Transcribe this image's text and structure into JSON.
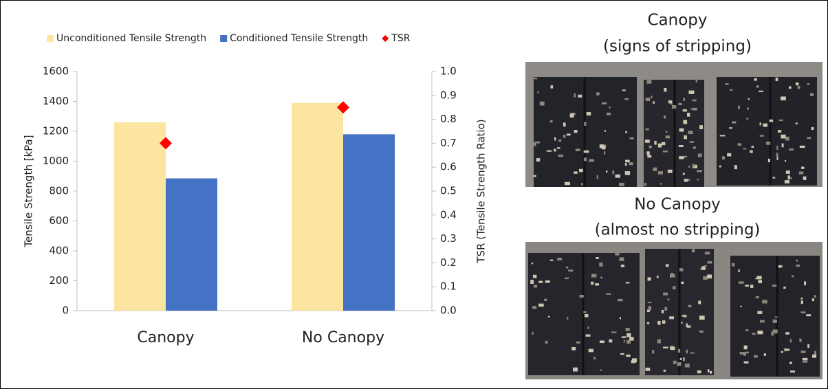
{
  "chart_data": {
    "type": "bar",
    "categories": [
      "Canopy",
      "No Canopy"
    ],
    "series": [
      {
        "name": "Unconditioned Tensile Strength",
        "color": "#fbe5a0",
        "values": [
          1260,
          1390
        ]
      },
      {
        "name": "Conditioned Tensile Strength",
        "color": "#4472c4",
        "values": [
          885,
          1180
        ]
      },
      {
        "name": "TSR",
        "color": "#ff0000",
        "values": [
          0.7,
          0.85
        ],
        "axis": "y2",
        "marker": "diamond"
      }
    ],
    "y_label": "Tensile Strength [kPa]",
    "y2_label": "TSR (Tensile Strength Ratio)",
    "ylim": [
      0,
      1600
    ],
    "yticks": [
      0,
      200,
      400,
      600,
      800,
      1000,
      1200,
      1400,
      1600
    ],
    "y2lim": [
      0,
      1.0
    ],
    "y2ticks": [
      {
        "value": 0,
        "label": "0.0"
      },
      0.1,
      0.2,
      0.3,
      0.4,
      0.5,
      0.6,
      0.7,
      0.8,
      0.9,
      {
        "value": 1.0,
        "label": "1.0"
      }
    ],
    "legend": "top",
    "grid": false
  },
  "photos": [
    {
      "title": "Canopy",
      "subtitle": "(signs of stripping)"
    },
    {
      "title": "No Canopy",
      "subtitle": "(almost no stripping)"
    }
  ]
}
